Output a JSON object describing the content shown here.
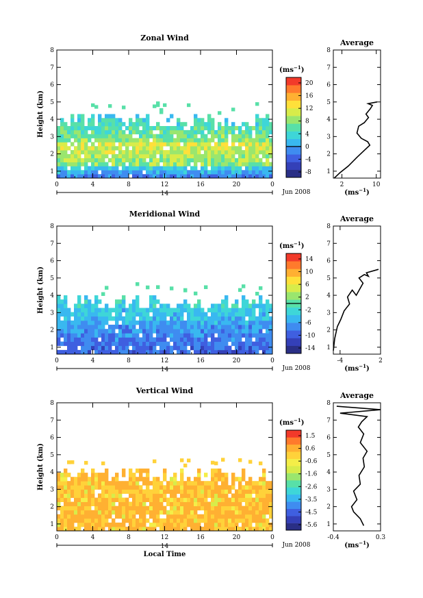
{
  "chart_data": [
    {
      "type": "heatmap",
      "title": "Zonal Wind",
      "ylabel": "Height (km)",
      "xticks": [
        "0",
        "4",
        "8",
        "12",
        "16",
        "20",
        "0"
      ],
      "ylim": [
        0.6,
        8
      ],
      "yticks": [
        1,
        2,
        3,
        4,
        5,
        6,
        7,
        8
      ],
      "day_label": "14",
      "date_label": "Jun 2008",
      "unit_label": "(ms",
      "unit_sup": "−1",
      "colorbar": {
        "ticks": [
          "20",
          "16",
          "12",
          "8",
          "4",
          "0",
          "-4",
          "-8"
        ],
        "min": -10,
        "max": 22
      },
      "data_top_km": 4.3,
      "profile": {
        "title": "Average",
        "xticks": [
          "2",
          "10"
        ],
        "xlim": [
          0,
          11
        ],
        "xlabel": "(ms",
        "xlabel_sup": "−1",
        "points": [
          [
            0.2,
            0.6
          ],
          [
            1.5,
            0.9
          ],
          [
            3.5,
            1.3
          ],
          [
            5.5,
            1.8
          ],
          [
            7.2,
            2.2
          ],
          [
            8.5,
            2.5
          ],
          [
            8.0,
            2.7
          ],
          [
            6.5,
            2.9
          ],
          [
            5.5,
            3.2
          ],
          [
            5.9,
            3.6
          ],
          [
            7.2,
            3.8
          ],
          [
            8.2,
            4.1
          ],
          [
            7.6,
            4.3
          ],
          [
            8.6,
            4.6
          ],
          [
            9.1,
            4.8
          ],
          [
            8.1,
            4.9
          ],
          [
            10.2,
            5.0
          ]
        ]
      }
    },
    {
      "type": "heatmap",
      "title": "Meridional Wind",
      "ylabel": "Height (km)",
      "xticks": [
        "0",
        "4",
        "8",
        "12",
        "16",
        "20",
        "0"
      ],
      "ylim": [
        0.6,
        8
      ],
      "yticks": [
        1,
        2,
        3,
        4,
        5,
        6,
        7,
        8
      ],
      "day_label": "14",
      "date_label": "Jun 2008",
      "unit_label": "(ms",
      "unit_sup": "−1",
      "colorbar": {
        "ticks": [
          "14",
          "10",
          "6",
          "2",
          "-2",
          "-6",
          "-10",
          "-14"
        ],
        "min": -16,
        "max": 16
      },
      "data_top_km": 4.0,
      "profile": {
        "title": "Average",
        "xticks": [
          "-4",
          "2"
        ],
        "xlim": [
          -5,
          2
        ],
        "xlabel": "(ms",
        "xlabel_sup": "−1",
        "points": [
          [
            -5,
            0.8
          ],
          [
            -4.8,
            1.5
          ],
          [
            -4.4,
            2.2
          ],
          [
            -3.9,
            2.6
          ],
          [
            -3.4,
            3.1
          ],
          [
            -2.6,
            3.5
          ],
          [
            -2.9,
            3.9
          ],
          [
            -2.2,
            4.3
          ],
          [
            -1.6,
            4.0
          ],
          [
            -0.6,
            4.7
          ],
          [
            -1.2,
            5.0
          ],
          [
            -0.4,
            5.2
          ],
          [
            0.2,
            5.1
          ],
          [
            -0.1,
            5.3
          ],
          [
            1.7,
            5.5
          ]
        ]
      }
    },
    {
      "type": "heatmap",
      "title": "Vertical Wind",
      "ylabel": "Height (km)",
      "xlabel": "Local Time",
      "xticks": [
        "0",
        "4",
        "8",
        "12",
        "16",
        "20",
        "0"
      ],
      "ylim": [
        0.6,
        8
      ],
      "yticks": [
        1,
        2,
        3,
        4,
        5,
        6,
        7,
        8
      ],
      "day_label": "14",
      "date_label": "Jun 2008",
      "unit_label": "(ms",
      "unit_sup": "−1",
      "colorbar": {
        "ticks": [
          "1.5",
          "0.6",
          "-0.6",
          "-1.6",
          "-2.6",
          "-3.5",
          "-4.5",
          "-5.6"
        ],
        "min": -6,
        "max": 2
      },
      "data_top_km": 4.2,
      "profile": {
        "title": "Average",
        "xticks": [
          "-0.4",
          "0.3"
        ],
        "xlim": [
          -0.4,
          0.3
        ],
        "xlabel": "(ms",
        "xlabel_sup": "−1",
        "points": [
          [
            0.05,
            0.9
          ],
          [
            0.0,
            1.3
          ],
          [
            -0.1,
            1.7
          ],
          [
            -0.13,
            2.0
          ],
          [
            -0.05,
            2.4
          ],
          [
            -0.1,
            2.9
          ],
          [
            0.0,
            3.3
          ],
          [
            -0.02,
            3.8
          ],
          [
            0.06,
            4.3
          ],
          [
            0.04,
            4.8
          ],
          [
            0.1,
            5.2
          ],
          [
            0.0,
            5.7
          ],
          [
            0.05,
            6.2
          ],
          [
            -0.03,
            6.6
          ],
          [
            0.02,
            6.9
          ],
          [
            0.1,
            7.2
          ],
          [
            -0.3,
            7.4
          ],
          [
            0.3,
            7.6
          ],
          [
            -0.35,
            7.8
          ]
        ]
      }
    }
  ]
}
